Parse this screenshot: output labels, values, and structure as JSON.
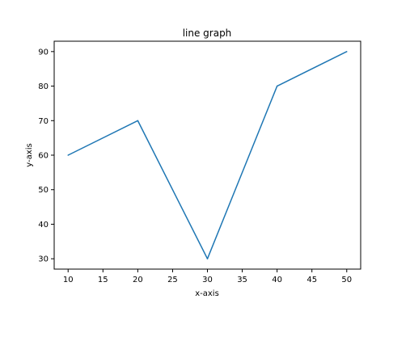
{
  "chart_data": {
    "type": "line",
    "title": "line graph",
    "xlabel": "x-axis",
    "ylabel": "y-axis",
    "xlim": [
      8,
      52
    ],
    "ylim": [
      27,
      93
    ],
    "xticks": [
      10,
      15,
      20,
      25,
      30,
      35,
      40,
      45,
      50
    ],
    "yticks": [
      30,
      40,
      50,
      60,
      70,
      80,
      90
    ],
    "grid": false,
    "series": [
      {
        "x": [
          10,
          20,
          30,
          40,
          50
        ],
        "y": [
          60,
          70,
          30,
          80,
          90
        ],
        "color": "#1f77b4"
      }
    ]
  }
}
